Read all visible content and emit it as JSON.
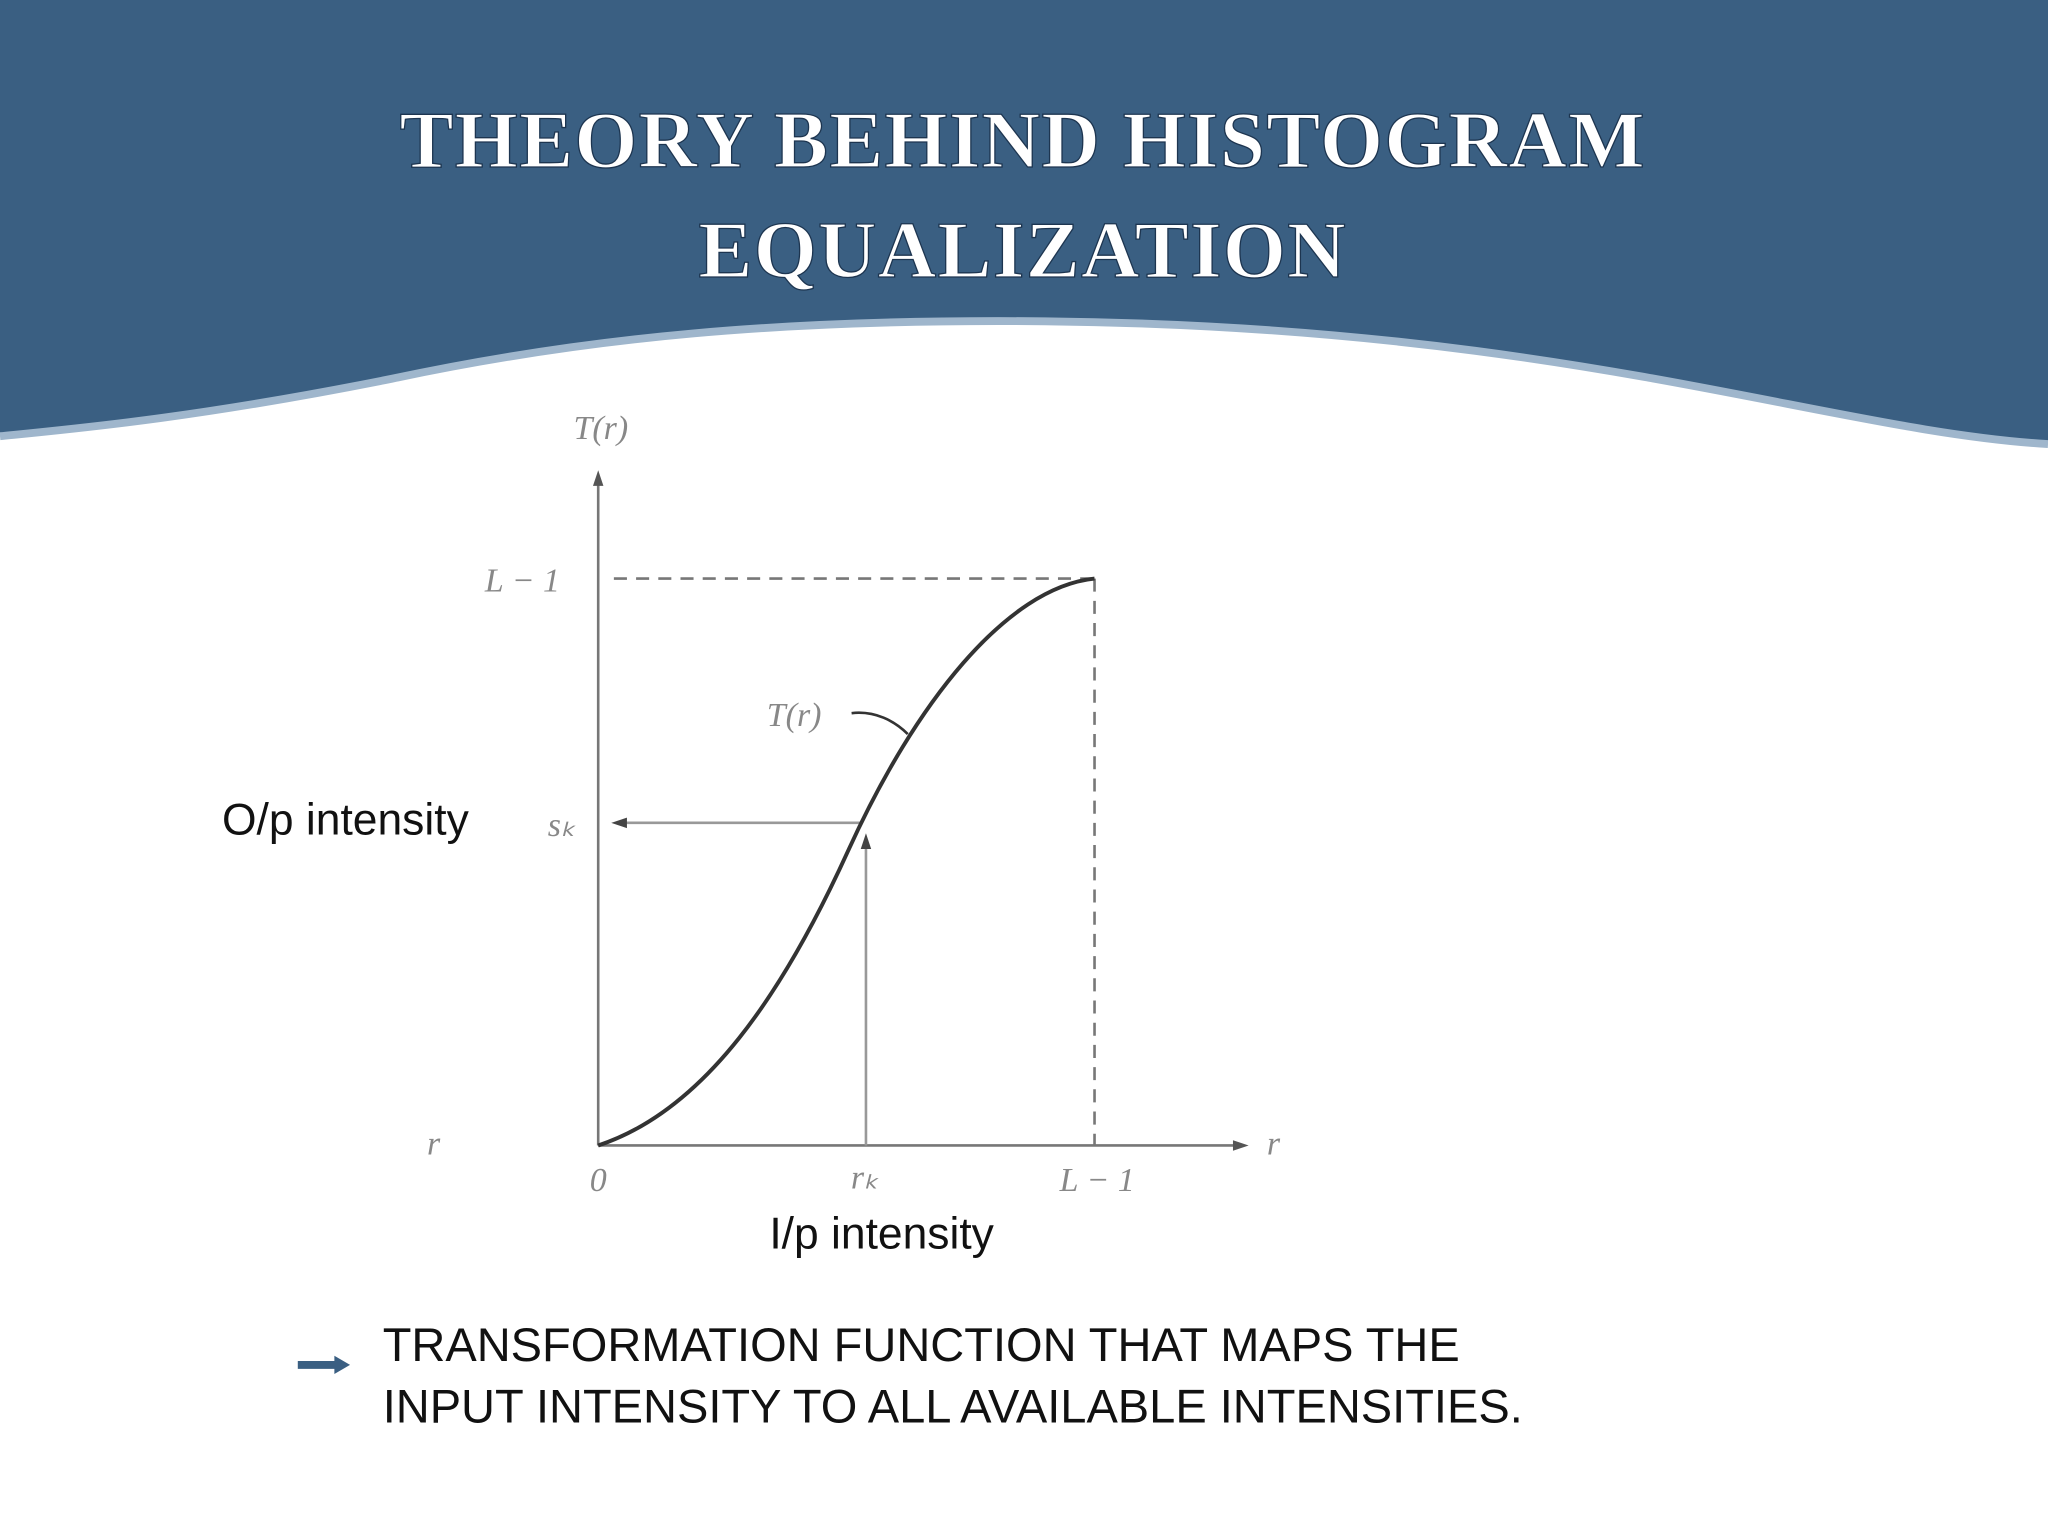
{
  "header": {
    "title_lines": [
      "THEORY BEHIND HISTOGRAM",
      "EQUALIZATION"
    ]
  },
  "diagram": {
    "y_axis_label": "T(r)",
    "y_top_label": "L − 1",
    "curve_label": "T(r)",
    "y_mark_label": "sₖ",
    "left_label": "r",
    "origin_label": "0",
    "x_mark_label": "rₖ",
    "x_end_label": "L − 1",
    "x_axis_label": "r"
  },
  "annotations": {
    "output": "O/p intensity",
    "input": "I/p intensity"
  },
  "bullet": {
    "lines": [
      "TRANSFORMATION FUNCTION THAT MAPS THE",
      "INPUT INTENSITY TO ALL AVAILABLE INTENSITIES."
    ]
  }
}
